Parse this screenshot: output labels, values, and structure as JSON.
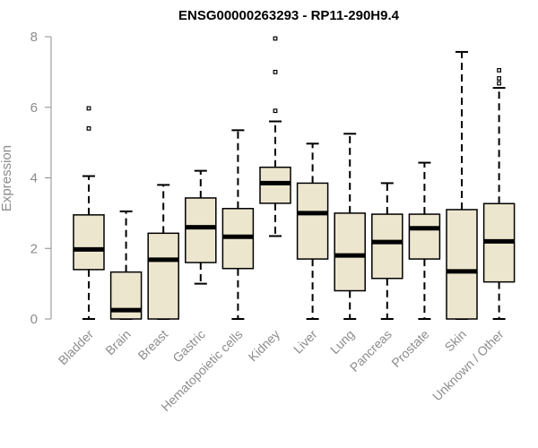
{
  "chart_data": {
    "type": "boxplot",
    "title": "ENSG00000263293 - RP11-290H9.4",
    "xlabel": "",
    "ylabel": "Expression",
    "ylim": [
      0,
      8
    ],
    "yticks": [
      0,
      2,
      4,
      6,
      8
    ],
    "grid": false,
    "colors": {
      "box_fill": "#ede6cf",
      "box_stroke": "#000000",
      "axis": "#8c8c8c"
    },
    "categories": [
      "Bladder",
      "Brain",
      "Breast",
      "Gastric",
      "Hematopoietic cells",
      "Kidney",
      "Liver",
      "Lung",
      "Pancreas",
      "Prostate",
      "Skin",
      "Unknown / Other"
    ],
    "boxes": [
      {
        "label": "Bladder",
        "whisker_low": 0.0,
        "q1": 1.4,
        "median": 1.97,
        "q3": 2.95,
        "whisker_high": 4.05,
        "outliers": [
          5.4,
          5.97
        ]
      },
      {
        "label": "Brain",
        "whisker_low": 0.0,
        "q1": 0.0,
        "median": 0.25,
        "q3": 1.33,
        "whisker_high": 3.05,
        "outliers": []
      },
      {
        "label": "Breast",
        "whisker_low": 0.0,
        "q1": 0.0,
        "median": 1.68,
        "q3": 2.43,
        "whisker_high": 3.8,
        "outliers": []
      },
      {
        "label": "Gastric",
        "whisker_low": 1.0,
        "q1": 1.6,
        "median": 2.6,
        "q3": 3.43,
        "whisker_high": 4.2,
        "outliers": []
      },
      {
        "label": "Hematopoietic cells",
        "whisker_low": 0.0,
        "q1": 1.43,
        "median": 2.33,
        "q3": 3.13,
        "whisker_high": 5.35,
        "outliers": []
      },
      {
        "label": "Kidney",
        "whisker_low": 2.35,
        "q1": 3.28,
        "median": 3.85,
        "q3": 4.3,
        "whisker_high": 5.6,
        "outliers": [
          5.9,
          7.0,
          7.95
        ]
      },
      {
        "label": "Liver",
        "whisker_low": 0.0,
        "q1": 1.7,
        "median": 3.0,
        "q3": 3.85,
        "whisker_high": 4.97,
        "outliers": []
      },
      {
        "label": "Lung",
        "whisker_low": 0.0,
        "q1": 0.8,
        "median": 1.8,
        "q3": 3.0,
        "whisker_high": 5.25,
        "outliers": []
      },
      {
        "label": "Pancreas",
        "whisker_low": 0.0,
        "q1": 1.15,
        "median": 2.18,
        "q3": 2.97,
        "whisker_high": 3.85,
        "outliers": []
      },
      {
        "label": "Prostate",
        "whisker_low": 0.0,
        "q1": 1.7,
        "median": 2.57,
        "q3": 2.97,
        "whisker_high": 4.43,
        "outliers": []
      },
      {
        "label": "Skin",
        "whisker_low": 0.0,
        "q1": 0.0,
        "median": 1.35,
        "q3": 3.1,
        "whisker_high": 7.57,
        "outliers": []
      },
      {
        "label": "Unknown / Other",
        "whisker_low": 0.0,
        "q1": 1.05,
        "median": 2.2,
        "q3": 3.27,
        "whisker_high": 6.55,
        "outliers": [
          6.68,
          6.82,
          7.05
        ]
      }
    ]
  }
}
